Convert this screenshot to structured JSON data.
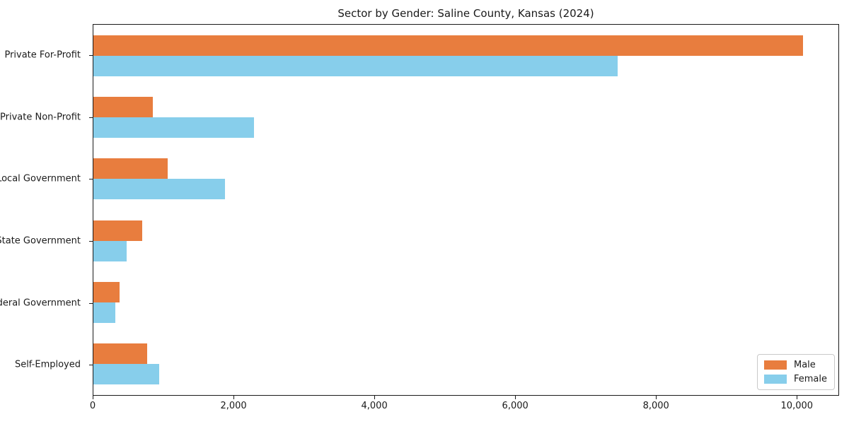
{
  "chart_data": {
    "type": "bar",
    "orientation": "horizontal",
    "title": "Sector by Gender: Saline County, Kansas (2024)",
    "xlabel": "",
    "ylabel": "",
    "grid": false,
    "legend_position": "lower right",
    "categories": [
      "Private For-Profit",
      "Private Non-Profit",
      "Local Government",
      "State Government",
      "Federal Government",
      "Self-Employed"
    ],
    "series": [
      {
        "name": "Male",
        "color": "#e87d3e",
        "values": [
          10100,
          850,
          1060,
          690,
          370,
          770
        ]
      },
      {
        "name": "Female",
        "color": "#87ceeb",
        "values": [
          7460,
          2290,
          1870,
          470,
          310,
          940
        ]
      }
    ],
    "xlim": [
      0,
      10600
    ],
    "xticks": {
      "values": [
        0,
        2000,
        4000,
        6000,
        8000,
        10000
      ],
      "labels": [
        "0",
        "2,000",
        "4,000",
        "6,000",
        "8,000",
        "10,000"
      ]
    }
  },
  "colors": {
    "background": "#ffffff",
    "axis": "#1a1a1a",
    "text": "#1a1a1a",
    "legend_border": "#c9c9c9"
  }
}
